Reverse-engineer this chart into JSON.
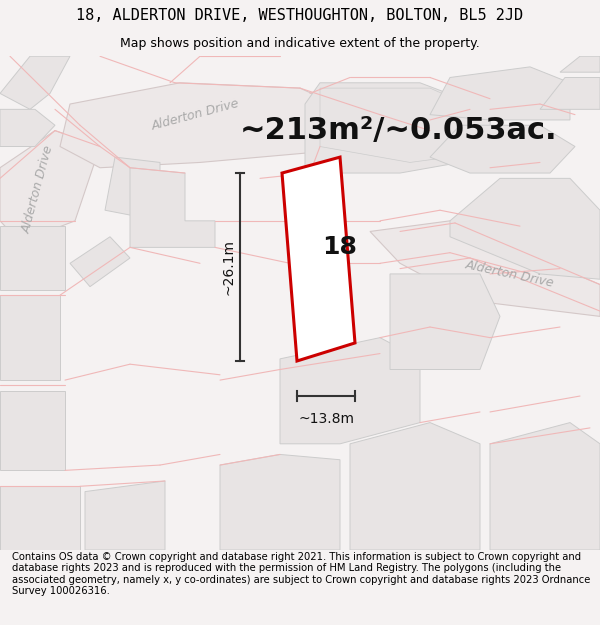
{
  "title_line1": "18, ALDERTON DRIVE, WESTHOUGHTON, BOLTON, BL5 2JD",
  "title_line2": "Map shows position and indicative extent of the property.",
  "footer_text": "Contains OS data © Crown copyright and database right 2021. This information is subject to Crown copyright and database rights 2023 and is reproduced with the permission of HM Land Registry. The polygons (including the associated geometry, namely x, y co-ordinates) are subject to Crown copyright and database rights 2023 Ordnance Survey 100026316.",
  "area_text": "~213m²/~0.053ac.",
  "width_label": "~13.8m",
  "height_label": "~26.1m",
  "property_number": "18",
  "bg_color": "#f5f2f2",
  "map_bg": "#ffffff",
  "bld_fill": "#e8e4e4",
  "bld_edge": "#cccccc",
  "road_fill": "#ede8e8",
  "road_edge": "#d4c8c8",
  "cadastral": "#f0b8b8",
  "plot_red": "#cc0000",
  "dim_color": "#333333",
  "road_label_color": "#aaaaaa",
  "title_fs": 11,
  "subtitle_fs": 9,
  "area_fs": 22,
  "footer_fs": 7.2,
  "dim_fs": 10,
  "num_fs": 18,
  "road_label_fs": 9
}
